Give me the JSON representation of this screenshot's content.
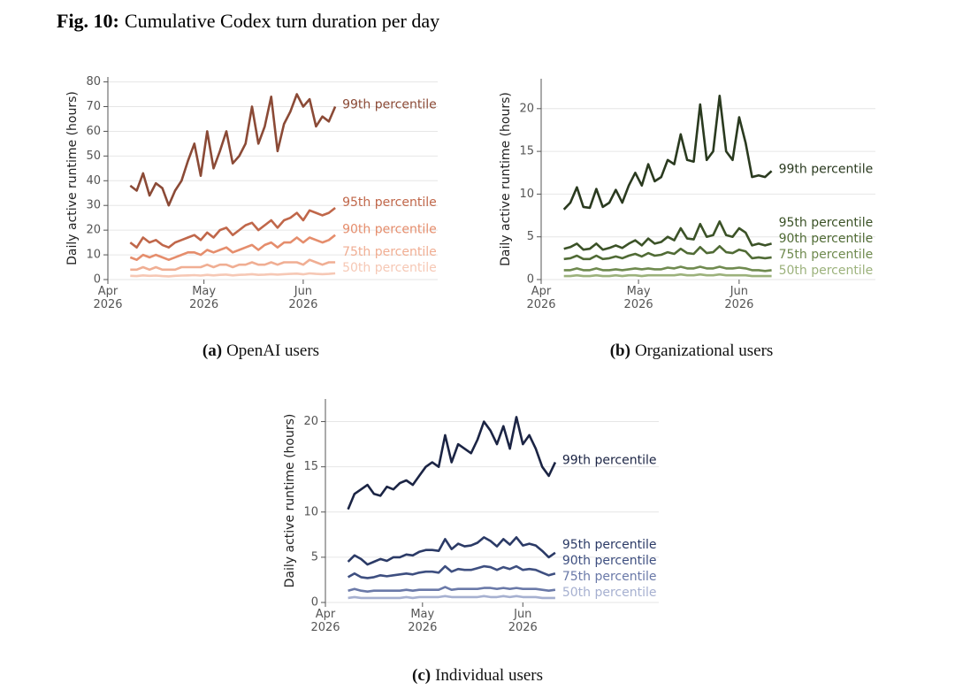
{
  "figure": {
    "label": "Fig. 10:",
    "title": "Cumulative Codex turn duration per day"
  },
  "chart_data": [
    {
      "type": "line",
      "caption_label": "(a)",
      "caption": "OpenAI users",
      "y_label": "Daily active runtime (hours)",
      "x": [
        7,
        9,
        11,
        13,
        15,
        17,
        19,
        21,
        23,
        25,
        27,
        29,
        31,
        33,
        35,
        37,
        39,
        41,
        43,
        45,
        47,
        49,
        51,
        53,
        55,
        57,
        59,
        61,
        63,
        65,
        67,
        69,
        71
      ],
      "xlim": [
        0,
        103
      ],
      "xticks": [
        {
          "value": 0,
          "label": "Apr\n2026"
        },
        {
          "value": 30,
          "label": "May\n2026"
        },
        {
          "value": 61,
          "label": "Jun\n2026"
        }
      ],
      "ylim": [
        0,
        82
      ],
      "yticks": [
        0,
        10,
        20,
        30,
        40,
        50,
        60,
        70,
        80
      ],
      "grid": true,
      "series": [
        {
          "name": "99th percentile",
          "color": "#8b4a36",
          "values": [
            38,
            36,
            43,
            34,
            39,
            37,
            30,
            36,
            40,
            48,
            55,
            42,
            60,
            45,
            52,
            60,
            47,
            50,
            55,
            70,
            55,
            62,
            74,
            52,
            63,
            68,
            75,
            70,
            73,
            62,
            66,
            64,
            70
          ]
        },
        {
          "name": "95th percentile",
          "color": "#c0674a",
          "values": [
            15,
            13,
            17,
            15,
            16,
            14,
            13,
            15,
            16,
            17,
            18,
            16,
            19,
            17,
            20,
            21,
            18,
            20,
            22,
            23,
            20,
            22,
            24,
            21,
            24,
            25,
            27,
            24,
            28,
            27,
            26,
            27,
            29
          ]
        },
        {
          "name": "90th percentile",
          "color": "#e58d6c",
          "values": [
            9,
            8,
            10,
            9,
            10,
            9,
            8,
            9,
            10,
            11,
            11,
            10,
            12,
            11,
            12,
            13,
            11,
            12,
            13,
            14,
            12,
            14,
            15,
            13,
            15,
            15,
            17,
            15,
            17,
            16,
            15,
            16,
            18
          ]
        },
        {
          "name": "75th percentile",
          "color": "#f0ae93",
          "values": [
            4,
            4,
            5,
            4,
            5,
            4,
            4,
            4,
            5,
            5,
            5,
            5,
            6,
            5,
            6,
            6,
            5,
            6,
            6,
            7,
            6,
            6,
            7,
            6,
            7,
            7,
            7,
            6,
            8,
            7,
            6,
            7,
            7
          ]
        },
        {
          "name": "50th percentile",
          "color": "#f6c8b5",
          "values": [
            1.5,
            1.4,
            1.7,
            1.5,
            1.6,
            1.4,
            1.3,
            1.5,
            1.6,
            1.7,
            1.8,
            1.6,
            1.9,
            1.7,
            1.9,
            2,
            1.7,
            1.9,
            2,
            2.2,
            1.9,
            2,
            2.2,
            2,
            2.2,
            2.3,
            2.4,
            2.1,
            2.5,
            2.3,
            2.2,
            2.3,
            2.5
          ]
        }
      ]
    },
    {
      "type": "line",
      "caption_label": "(b)",
      "caption": "Organizational users",
      "y_label": "Daily active runtime (hours)",
      "x": [
        7,
        9,
        11,
        13,
        15,
        17,
        19,
        21,
        23,
        25,
        27,
        29,
        31,
        33,
        35,
        37,
        39,
        41,
        43,
        45,
        47,
        49,
        51,
        53,
        55,
        57,
        59,
        61,
        63,
        65,
        67,
        69,
        71
      ],
      "xlim": [
        0,
        103
      ],
      "xticks": [
        {
          "value": 0,
          "label": "Apr\n2026"
        },
        {
          "value": 30,
          "label": "May\n2026"
        },
        {
          "value": 61,
          "label": "Jun\n2026"
        }
      ],
      "ylim": [
        0,
        23.5
      ],
      "yticks": [
        0,
        5,
        10,
        15,
        20
      ],
      "grid": true,
      "series": [
        {
          "name": "99th percentile",
          "color": "#2a3a1f",
          "values": [
            8.2,
            9,
            10.8,
            8.5,
            8.4,
            10.6,
            8.5,
            9,
            10.5,
            9,
            11,
            12.5,
            11,
            13.5,
            11.5,
            12,
            14,
            13.5,
            17,
            14,
            13.8,
            20.5,
            14,
            15,
            21.5,
            15,
            14,
            19,
            16,
            12,
            12.2,
            12,
            12.7
          ]
        },
        {
          "name": "95th percentile",
          "color": "#3b5227",
          "values": [
            3.6,
            3.8,
            4.2,
            3.5,
            3.6,
            4.2,
            3.5,
            3.7,
            4,
            3.7,
            4.2,
            4.6,
            4,
            4.8,
            4.2,
            4.4,
            5,
            4.6,
            6,
            4.8,
            4.7,
            6.5,
            5,
            5.2,
            6.8,
            5.2,
            5,
            6,
            5.5,
            4,
            4.2,
            4,
            4.2
          ]
        },
        {
          "name": "90th percentile",
          "color": "#506b35",
          "values": [
            2.4,
            2.5,
            2.8,
            2.4,
            2.4,
            2.8,
            2.4,
            2.5,
            2.7,
            2.5,
            2.8,
            3,
            2.7,
            3.1,
            2.8,
            2.9,
            3.2,
            3,
            3.6,
            3.1,
            3,
            3.8,
            3.1,
            3.2,
            3.9,
            3.2,
            3.1,
            3.5,
            3.3,
            2.5,
            2.6,
            2.5,
            2.6
          ]
        },
        {
          "name": "75th percentile",
          "color": "#6f8a4f",
          "values": [
            1.1,
            1.1,
            1.3,
            1.1,
            1.1,
            1.3,
            1.1,
            1.1,
            1.2,
            1.1,
            1.2,
            1.3,
            1.2,
            1.3,
            1.2,
            1.2,
            1.4,
            1.3,
            1.5,
            1.3,
            1.3,
            1.5,
            1.3,
            1.3,
            1.5,
            1.3,
            1.3,
            1.4,
            1.3,
            1.1,
            1.1,
            1,
            1.1
          ]
        },
        {
          "name": "50th percentile",
          "color": "#9cb27c",
          "values": [
            0.4,
            0.4,
            0.5,
            0.4,
            0.4,
            0.5,
            0.4,
            0.4,
            0.5,
            0.4,
            0.5,
            0.5,
            0.4,
            0.5,
            0.5,
            0.5,
            0.5,
            0.5,
            0.6,
            0.5,
            0.5,
            0.6,
            0.5,
            0.5,
            0.6,
            0.5,
            0.5,
            0.5,
            0.5,
            0.4,
            0.4,
            0.4,
            0.4
          ]
        }
      ]
    },
    {
      "type": "line",
      "caption_label": "(c)",
      "caption": "Individual users",
      "y_label": "Daily active runtime (hours)",
      "x": [
        7,
        9,
        11,
        13,
        15,
        17,
        19,
        21,
        23,
        25,
        27,
        29,
        31,
        33,
        35,
        37,
        39,
        41,
        43,
        45,
        47,
        49,
        51,
        53,
        55,
        57,
        59,
        61,
        63,
        65,
        67,
        69,
        71
      ],
      "xlim": [
        0,
        103
      ],
      "xticks": [
        {
          "value": 0,
          "label": "Apr\n2026"
        },
        {
          "value": 30,
          "label": "May\n2026"
        },
        {
          "value": 61,
          "label": "Jun\n2026"
        }
      ],
      "ylim": [
        0,
        22.5
      ],
      "yticks": [
        0,
        5,
        10,
        15,
        20
      ],
      "grid": true,
      "series": [
        {
          "name": "99th percentile",
          "color": "#1b2444",
          "values": [
            10.3,
            12,
            12.5,
            13,
            12,
            11.8,
            12.8,
            12.5,
            13.2,
            13.5,
            13,
            14,
            15,
            15.5,
            15,
            18.5,
            15.5,
            17.5,
            17,
            16.5,
            18,
            20,
            19,
            17.5,
            19.5,
            17,
            20.5,
            17.5,
            18.5,
            17,
            15,
            14,
            15.5
          ]
        },
        {
          "name": "95th percentile",
          "color": "#2b3a66",
          "values": [
            4.5,
            5.2,
            4.8,
            4.2,
            4.5,
            4.8,
            4.6,
            5,
            5,
            5.3,
            5.2,
            5.6,
            5.8,
            5.8,
            5.7,
            7,
            5.9,
            6.5,
            6.2,
            6.3,
            6.6,
            7.2,
            6.8,
            6.2,
            7,
            6.4,
            7.2,
            6.3,
            6.5,
            6.3,
            5.7,
            5,
            5.5
          ]
        },
        {
          "name": "90th percentile",
          "color": "#3e4f80",
          "values": [
            2.8,
            3.2,
            2.8,
            2.7,
            2.8,
            3,
            2.9,
            3,
            3.1,
            3.2,
            3.1,
            3.3,
            3.4,
            3.4,
            3.3,
            4,
            3.4,
            3.7,
            3.6,
            3.6,
            3.8,
            4,
            3.9,
            3.6,
            3.9,
            3.7,
            4,
            3.6,
            3.7,
            3.6,
            3.3,
            3,
            3.2
          ]
        },
        {
          "name": "75th percentile",
          "color": "#6a79a8",
          "values": [
            1.3,
            1.5,
            1.3,
            1.2,
            1.3,
            1.3,
            1.3,
            1.3,
            1.3,
            1.4,
            1.3,
            1.4,
            1.4,
            1.4,
            1.4,
            1.7,
            1.4,
            1.5,
            1.5,
            1.5,
            1.5,
            1.6,
            1.6,
            1.5,
            1.6,
            1.5,
            1.6,
            1.5,
            1.5,
            1.5,
            1.4,
            1.3,
            1.4
          ]
        },
        {
          "name": "50th percentile",
          "color": "#a6b0d0",
          "values": [
            0.5,
            0.6,
            0.5,
            0.5,
            0.5,
            0.5,
            0.5,
            0.5,
            0.5,
            0.6,
            0.5,
            0.6,
            0.6,
            0.6,
            0.6,
            0.7,
            0.6,
            0.6,
            0.6,
            0.6,
            0.6,
            0.7,
            0.6,
            0.6,
            0.7,
            0.6,
            0.7,
            0.6,
            0.6,
            0.6,
            0.5,
            0.5,
            0.5
          ]
        }
      ]
    }
  ]
}
